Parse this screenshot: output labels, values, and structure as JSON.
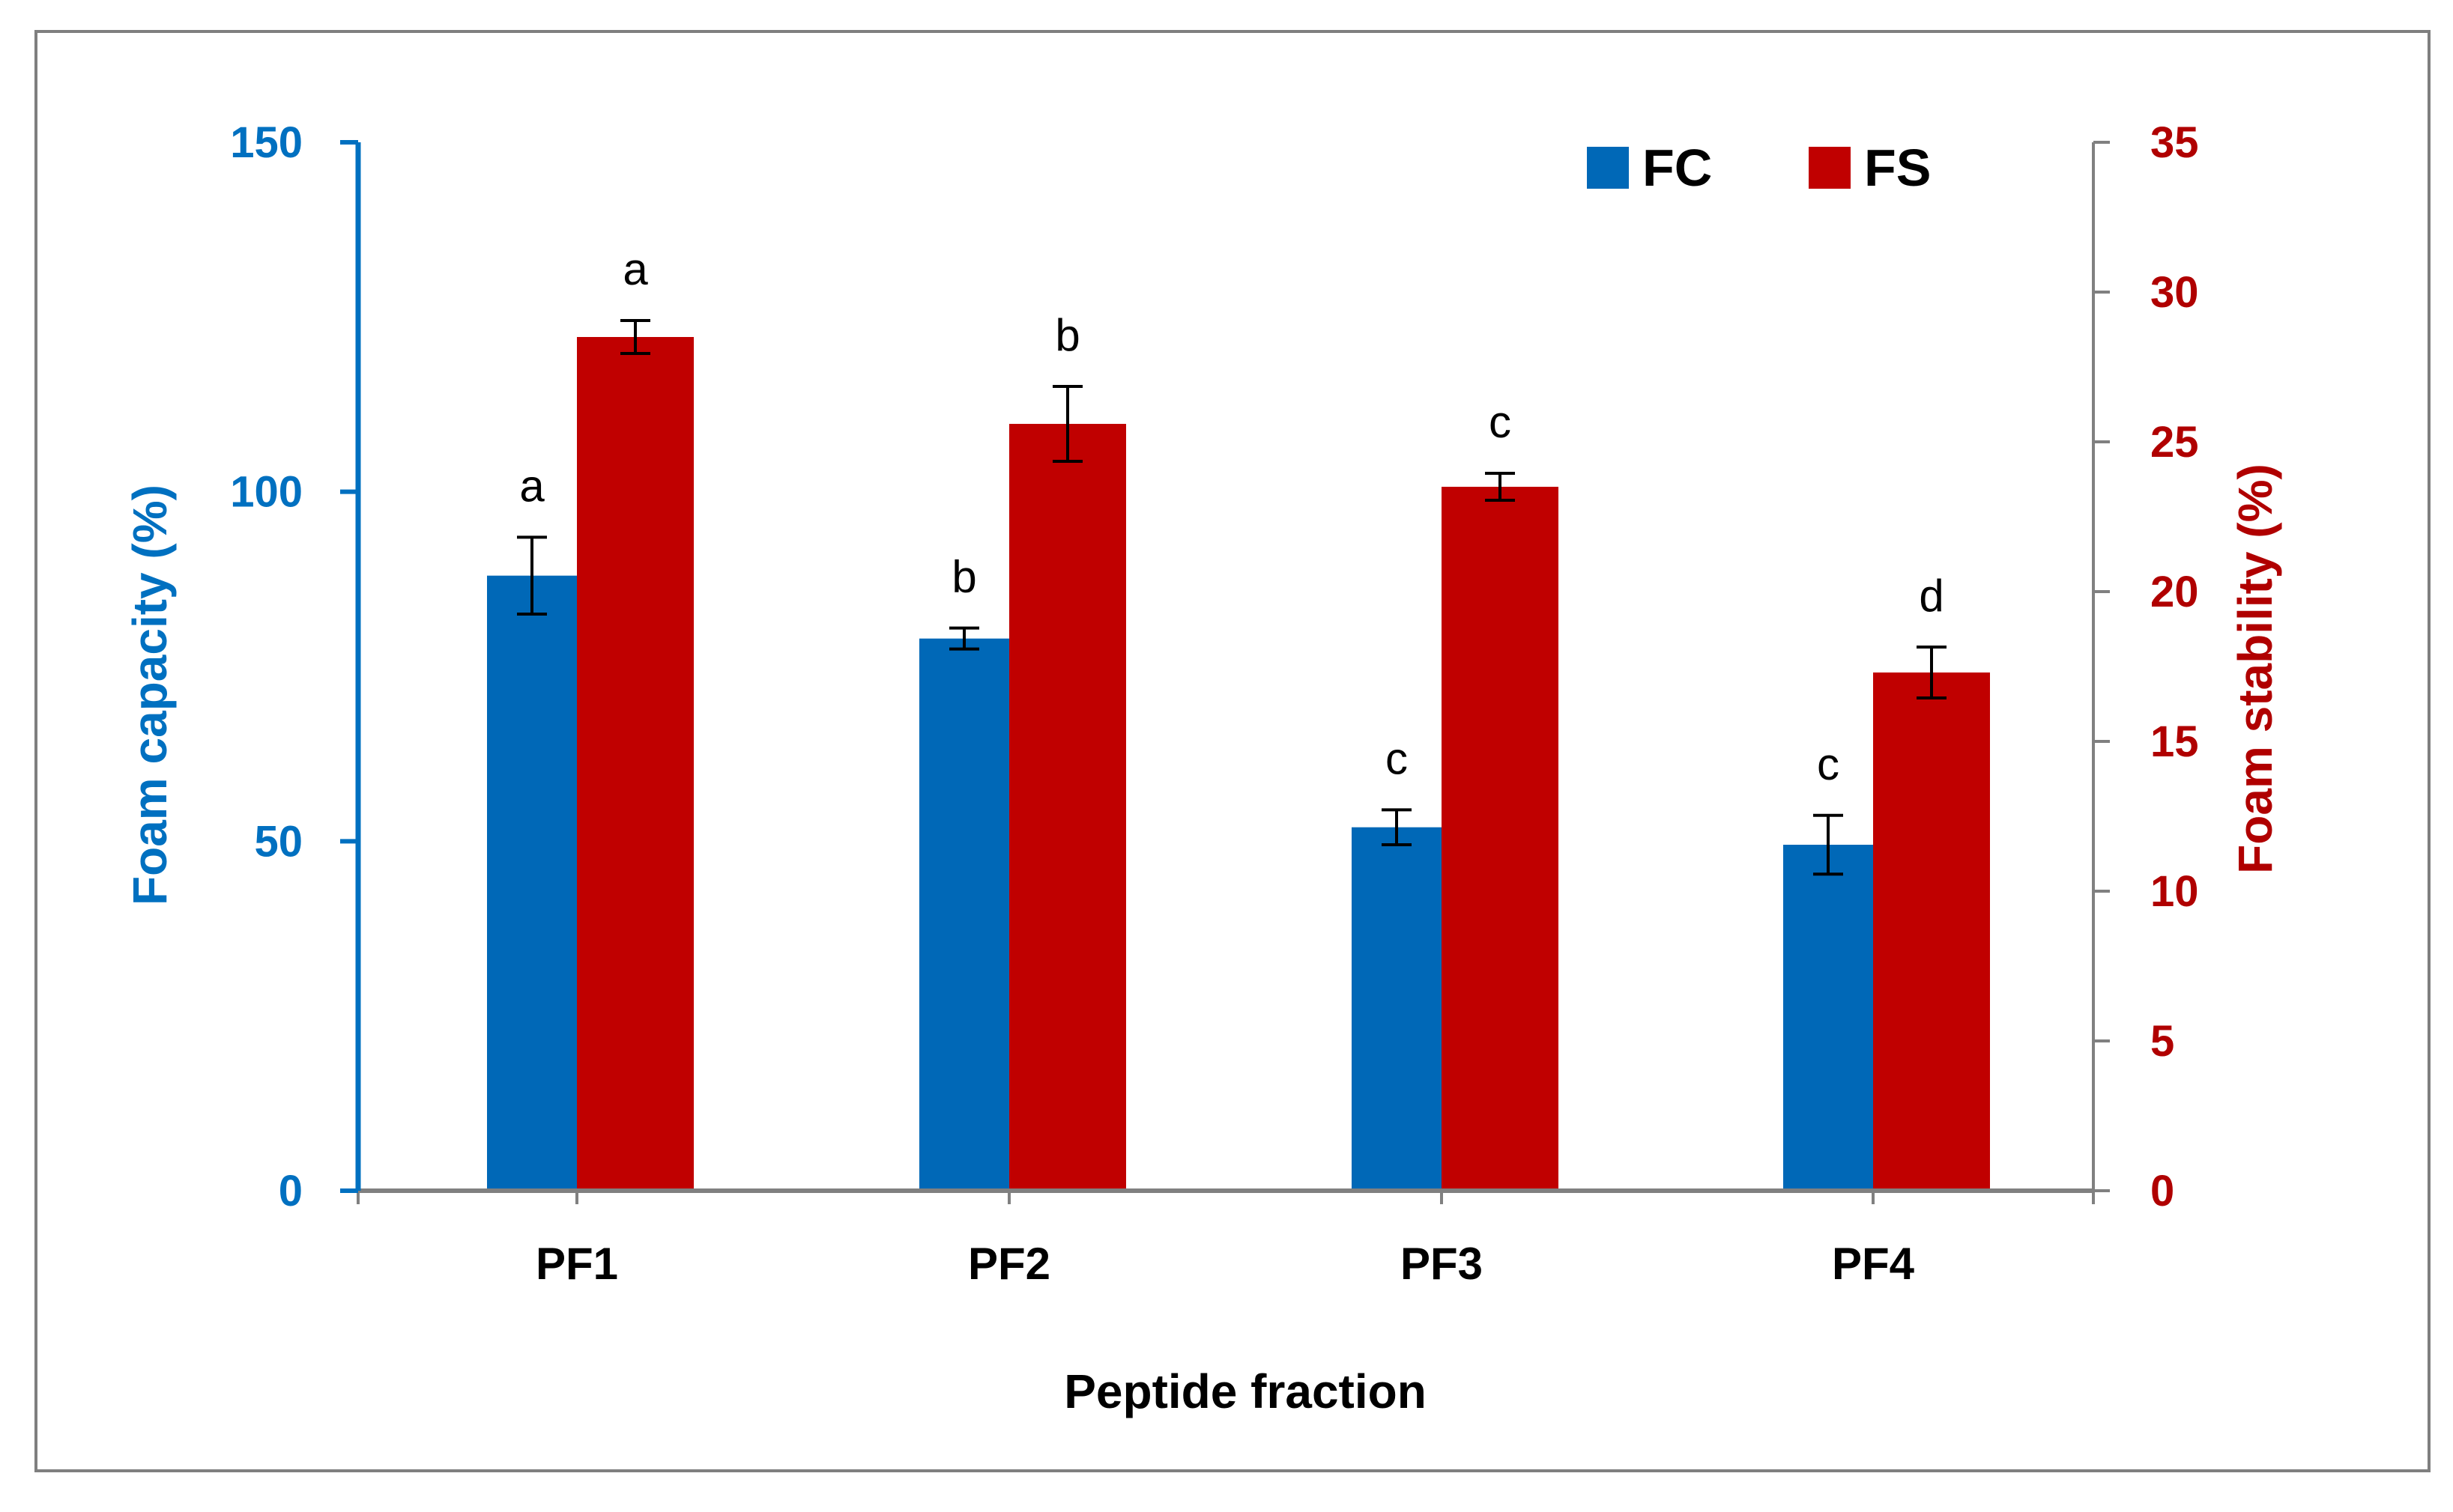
{
  "colors": {
    "fc": "#0068b7",
    "fs": "#c00000",
    "left_axis": "#0070c0",
    "right_axis": "#b00000",
    "axis_gray": "#808080",
    "frame": "#7f7f7f"
  },
  "chart_data": {
    "type": "bar",
    "title": "",
    "xlabel": "Peptide fraction",
    "ylabel": "Foam capacity (%)",
    "y2label": "Foam stability (%)",
    "categories": [
      "PF1",
      "PF2",
      "PF3",
      "PF4"
    ],
    "ylim": [
      0,
      150
    ],
    "y2lim": [
      0,
      35
    ],
    "yticks": [
      0,
      50,
      100,
      150
    ],
    "y2ticks": [
      0,
      5,
      10,
      15,
      20,
      25,
      30,
      35
    ],
    "legend_position": "top-right",
    "series": [
      {
        "name": "FC",
        "axis": "left",
        "values": [
          88,
          79,
          52,
          49.5
        ],
        "errors": [
          5.5,
          1.5,
          2.5,
          4.2
        ],
        "labels": [
          "a",
          "b",
          "c",
          "c"
        ]
      },
      {
        "name": "FS",
        "axis": "right",
        "values": [
          28.5,
          25.6,
          23.5,
          17.3
        ],
        "errors": [
          0.55,
          1.25,
          0.45,
          0.85
        ],
        "labels": [
          "a",
          "b",
          "c",
          "d"
        ]
      }
    ]
  }
}
